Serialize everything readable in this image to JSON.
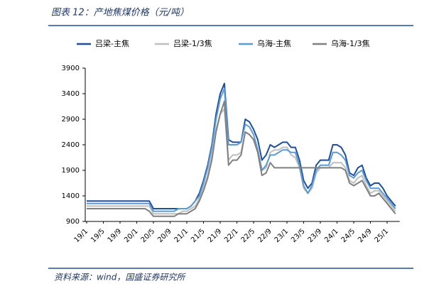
{
  "chart_data": {
    "type": "line",
    "title": "图表 12：产地焦煤价格（元/吨）",
    "source": "资料来源：wind，国盛证券研究所",
    "categories": [
      "19/1",
      null,
      null,
      null,
      "19/5",
      null,
      null,
      null,
      "19/9",
      null,
      null,
      null,
      "20/1",
      null,
      null,
      null,
      "20/5",
      null,
      null,
      null,
      "20/9",
      null,
      null,
      null,
      "21/1",
      null,
      null,
      null,
      "21/5",
      null,
      null,
      null,
      "21/9",
      null,
      null,
      null,
      "22/1",
      null,
      null,
      null,
      "22/5",
      null,
      null,
      null,
      "22/9",
      null,
      null,
      null,
      "23/1",
      null,
      null,
      null,
      "23/5",
      null,
      null,
      null,
      "23/9",
      null,
      null,
      null,
      "24/1",
      null,
      null,
      null,
      "24/5",
      null,
      null,
      null,
      "24/9",
      null,
      null,
      null,
      "25/1",
      null,
      null
    ],
    "series": [
      {
        "name": "吕梁-主焦",
        "color": "#1f4e9c",
        "values": [
          1300,
          1300,
          1300,
          1300,
          1300,
          1300,
          1300,
          1300,
          1300,
          1300,
          1300,
          1300,
          1300,
          1300,
          1300,
          1300,
          1150,
          1150,
          1150,
          1150,
          1150,
          1150,
          1150,
          1150,
          1150,
          1200,
          1300,
          1450,
          1700,
          2000,
          2400,
          3000,
          3400,
          3600,
          2500,
          2450,
          2450,
          2450,
          2900,
          2850,
          2700,
          2500,
          2100,
          2200,
          2400,
          2350,
          2400,
          2450,
          2450,
          2350,
          2350,
          2100,
          1700,
          1550,
          1650,
          2000,
          2100,
          2100,
          2100,
          2400,
          2400,
          2350,
          2200,
          1850,
          1800,
          1950,
          2000,
          1750,
          1600,
          1650,
          1650,
          1550,
          1400,
          1300,
          1200
        ]
      },
      {
        "name": "吕梁-1/3焦",
        "color": "#bfbfbf",
        "values": [
          1200,
          1200,
          1200,
          1200,
          1200,
          1200,
          1200,
          1200,
          1200,
          1200,
          1200,
          1200,
          1200,
          1200,
          1200,
          1200,
          1050,
          1050,
          1050,
          1050,
          1050,
          1050,
          1050,
          1100,
          1100,
          1150,
          1200,
          1350,
          1550,
          1800,
          2200,
          2700,
          3000,
          3100,
          2100,
          2200,
          2200,
          2250,
          2650,
          2600,
          2500,
          2300,
          1900,
          1950,
          2250,
          2300,
          2300,
          2350,
          2350,
          2200,
          2150,
          1950,
          1550,
          1450,
          1550,
          1850,
          1950,
          1950,
          1950,
          2050,
          2050,
          2050,
          1950,
          1700,
          1650,
          1750,
          1800,
          1600,
          1450,
          1500,
          1500,
          1400,
          1300,
          1200,
          1100
        ]
      },
      {
        "name": "乌海-主焦",
        "color": "#5b9bd5",
        "values": [
          1250,
          1250,
          1250,
          1250,
          1250,
          1250,
          1250,
          1250,
          1250,
          1250,
          1250,
          1250,
          1250,
          1250,
          1250,
          1250,
          1100,
          1100,
          1100,
          1100,
          1100,
          1100,
          1150,
          1150,
          1150,
          1200,
          1300,
          1400,
          1650,
          1950,
          2350,
          2900,
          3300,
          3500,
          2400,
          2400,
          2400,
          2450,
          2800,
          2750,
          2600,
          2300,
          1900,
          2000,
          2200,
          2200,
          2250,
          2300,
          2300,
          2250,
          2250,
          2000,
          1600,
          1450,
          1600,
          1900,
          2000,
          2000,
          2000,
          2250,
          2250,
          2200,
          2100,
          1800,
          1750,
          1850,
          1900,
          1700,
          1550,
          1550,
          1550,
          1450,
          1350,
          1250,
          1150
        ]
      },
      {
        "name": "乌海-1/3焦",
        "color": "#808080",
        "values": [
          1150,
          1150,
          1150,
          1150,
          1150,
          1150,
          1150,
          1150,
          1150,
          1150,
          1150,
          1150,
          1150,
          1150,
          1150,
          1100,
          1000,
          1000,
          1000,
          1000,
          1000,
          1000,
          1050,
          1050,
          1050,
          1100,
          1150,
          1300,
          1500,
          1750,
          2100,
          2650,
          3000,
          3250,
          2000,
          2100,
          2100,
          2200,
          2650,
          2600,
          2500,
          2250,
          1800,
          1850,
          2050,
          1950,
          1950,
          1950,
          1950,
          1950,
          1950,
          1950,
          1950,
          1950,
          1950,
          1950,
          1950,
          1950,
          1950,
          1950,
          1950,
          1950,
          1900,
          1650,
          1600,
          1650,
          1700,
          1550,
          1400,
          1400,
          1450,
          1350,
          1250,
          1150,
          1050
        ]
      }
    ],
    "ylim": [
      900,
      3900
    ],
    "yticks": [
      900,
      1400,
      1900,
      2400,
      2900,
      3400,
      3900
    ],
    "grid": false,
    "legend": "top"
  }
}
